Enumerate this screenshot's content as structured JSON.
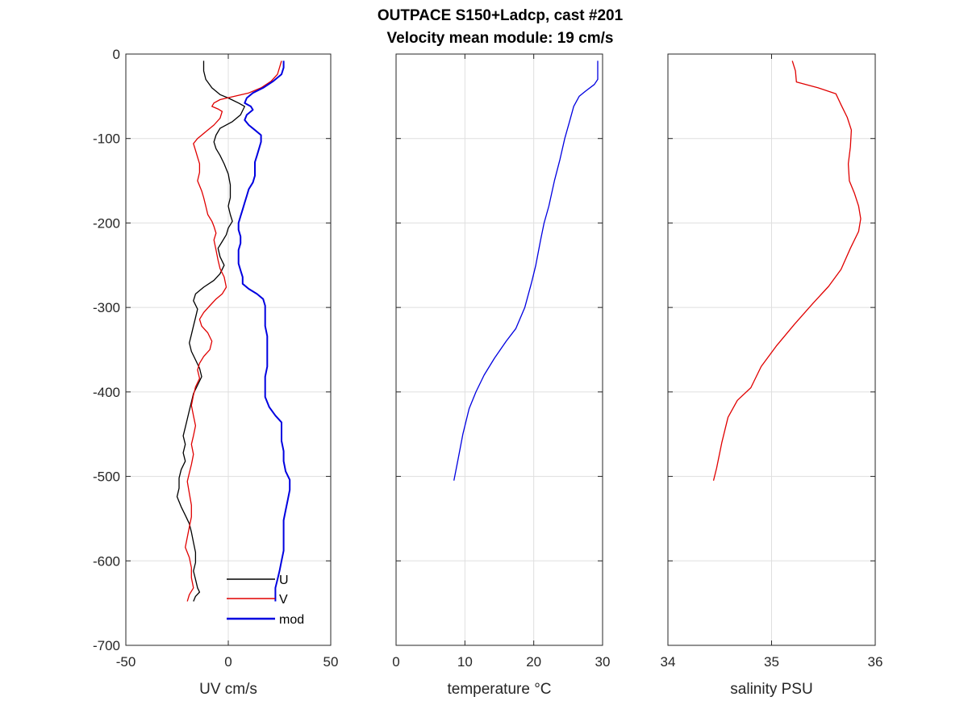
{
  "figure": {
    "title_line1": "OUTPACE S150+Ladcp, cast #201",
    "title_line2": "Velocity mean module:  19 cm/s"
  },
  "chart_data": [
    {
      "type": "line",
      "xlabel": "UV cm/s",
      "ylabel": "",
      "xlim": [
        -50,
        50
      ],
      "ylim": [
        -700,
        0
      ],
      "xticks": [
        -50,
        0,
        50
      ],
      "yticks": [
        0,
        -100,
        -200,
        -300,
        -400,
        -500,
        -600,
        -700
      ],
      "grid": true,
      "legend_position": "bottom-right",
      "series": [
        {
          "name": "U",
          "color": "#000000",
          "points": [
            [
              -12,
              -8
            ],
            [
              -12,
              -20
            ],
            [
              -11,
              -30
            ],
            [
              -8,
              -40
            ],
            [
              -4,
              -48
            ],
            [
              0,
              -52
            ],
            [
              5,
              -58
            ],
            [
              8,
              -62
            ],
            [
              6,
              -72
            ],
            [
              2,
              -80
            ],
            [
              -4,
              -88
            ],
            [
              -6,
              -96
            ],
            [
              -7,
              -104
            ],
            [
              -6,
              -112
            ],
            [
              -4,
              -120
            ],
            [
              -2,
              -130
            ],
            [
              0,
              -142
            ],
            [
              1,
              -155
            ],
            [
              1,
              -170
            ],
            [
              0,
              -180
            ],
            [
              1,
              -190
            ],
            [
              2,
              -198
            ],
            [
              0,
              -206
            ],
            [
              -1,
              -214
            ],
            [
              -3,
              -222
            ],
            [
              -5,
              -230
            ],
            [
              -4,
              -240
            ],
            [
              -2,
              -250
            ],
            [
              -4,
              -260
            ],
            [
              -7,
              -268
            ],
            [
              -12,
              -276
            ],
            [
              -16,
              -284
            ],
            [
              -17,
              -292
            ],
            [
              -15,
              -302
            ],
            [
              -16,
              -312
            ],
            [
              -17,
              -322
            ],
            [
              -18,
              -332
            ],
            [
              -19,
              -342
            ],
            [
              -18,
              -352
            ],
            [
              -16,
              -362
            ],
            [
              -14,
              -372
            ],
            [
              -13,
              -382
            ],
            [
              -15,
              -392
            ],
            [
              -17,
              -402
            ],
            [
              -18,
              -412
            ],
            [
              -19,
              -422
            ],
            [
              -20,
              -432
            ],
            [
              -21,
              -442
            ],
            [
              -22,
              -452
            ],
            [
              -21,
              -462
            ],
            [
              -22,
              -472
            ],
            [
              -21,
              -482
            ],
            [
              -23,
              -492
            ],
            [
              -24,
              -502
            ],
            [
              -24,
              -514
            ],
            [
              -25,
              -524
            ],
            [
              -23,
              -536
            ],
            [
              -21,
              -546
            ],
            [
              -19,
              -556
            ],
            [
              -18,
              -566
            ],
            [
              -17,
              -578
            ],
            [
              -16,
              -590
            ],
            [
              -16,
              -602
            ],
            [
              -17,
              -612
            ],
            [
              -16,
              -622
            ],
            [
              -15,
              -632
            ],
            [
              -14,
              -637
            ],
            [
              -16,
              -642
            ],
            [
              -17,
              -648
            ]
          ]
        },
        {
          "name": "V",
          "color": "#e00000",
          "points": [
            [
              26,
              -8
            ],
            [
              25,
              -16
            ],
            [
              24,
              -24
            ],
            [
              21,
              -32
            ],
            [
              16,
              -40
            ],
            [
              10,
              -46
            ],
            [
              3,
              -50
            ],
            [
              -4,
              -54
            ],
            [
              -7,
              -58
            ],
            [
              -8,
              -62
            ],
            [
              -5,
              -65
            ],
            [
              -3,
              -68
            ],
            [
              -4,
              -76
            ],
            [
              -7,
              -84
            ],
            [
              -11,
              -92
            ],
            [
              -15,
              -100
            ],
            [
              -17,
              -106
            ],
            [
              -16,
              -114
            ],
            [
              -15,
              -122
            ],
            [
              -14,
              -130
            ],
            [
              -14,
              -140
            ],
            [
              -15,
              -150
            ],
            [
              -13,
              -162
            ],
            [
              -12,
              -170
            ],
            [
              -11,
              -180
            ],
            [
              -10,
              -190
            ],
            [
              -8,
              -198
            ],
            [
              -7,
              -204
            ],
            [
              -6,
              -212
            ],
            [
              -7,
              -220
            ],
            [
              -6,
              -232
            ],
            [
              -5,
              -244
            ],
            [
              -4,
              -254
            ],
            [
              -2,
              -264
            ],
            [
              -1,
              -276
            ],
            [
              -3,
              -284
            ],
            [
              -6,
              -290
            ],
            [
              -9,
              -298
            ],
            [
              -12,
              -306
            ],
            [
              -14,
              -314
            ],
            [
              -13,
              -322
            ],
            [
              -10,
              -330
            ],
            [
              -8,
              -340
            ],
            [
              -9,
              -350
            ],
            [
              -12,
              -358
            ],
            [
              -14,
              -366
            ],
            [
              -15,
              -374
            ],
            [
              -14,
              -384
            ],
            [
              -16,
              -394
            ],
            [
              -17,
              -404
            ],
            [
              -18,
              -416
            ],
            [
              -17,
              -428
            ],
            [
              -16,
              -440
            ],
            [
              -17,
              -452
            ],
            [
              -18,
              -462
            ],
            [
              -17,
              -474
            ],
            [
              -18,
              -486
            ],
            [
              -19,
              -496
            ],
            [
              -20,
              -506
            ],
            [
              -19,
              -520
            ],
            [
              -18,
              -534
            ],
            [
              -18,
              -548
            ],
            [
              -19,
              -560
            ],
            [
              -20,
              -572
            ],
            [
              -21,
              -584
            ],
            [
              -19,
              -596
            ],
            [
              -18,
              -608
            ],
            [
              -18,
              -620
            ],
            [
              -17,
              -632
            ],
            [
              -19,
              -640
            ],
            [
              -20,
              -648
            ]
          ]
        },
        {
          "name": "mod",
          "color": "#0000e0",
          "points": [
            [
              27,
              -8
            ],
            [
              27,
              -16
            ],
            [
              26,
              -24
            ],
            [
              22,
              -32
            ],
            [
              17,
              -40
            ],
            [
              12,
              -46
            ],
            [
              9,
              -52
            ],
            [
              8,
              -58
            ],
            [
              11,
              -62
            ],
            [
              12,
              -66
            ],
            [
              9,
              -72
            ],
            [
              8,
              -78
            ],
            [
              10,
              -84
            ],
            [
              13,
              -90
            ],
            [
              16,
              -96
            ],
            [
              16,
              -104
            ],
            [
              15,
              -112
            ],
            [
              14,
              -120
            ],
            [
              13,
              -128
            ],
            [
              13,
              -136
            ],
            [
              13,
              -144
            ],
            [
              12,
              -152
            ],
            [
              10,
              -160
            ],
            [
              9,
              -168
            ],
            [
              8,
              -176
            ],
            [
              7,
              -184
            ],
            [
              6,
              -192
            ],
            [
              5,
              -200
            ],
            [
              5,
              -208
            ],
            [
              6,
              -216
            ],
            [
              6,
              -224
            ],
            [
              5,
              -232
            ],
            [
              5,
              -240
            ],
            [
              5,
              -248
            ],
            [
              6,
              -256
            ],
            [
              7,
              -264
            ],
            [
              7,
              -272
            ],
            [
              10,
              -278
            ],
            [
              14,
              -284
            ],
            [
              17,
              -290
            ],
            [
              18,
              -298
            ],
            [
              18,
              -310
            ],
            [
              18,
              -322
            ],
            [
              19,
              -334
            ],
            [
              19,
              -346
            ],
            [
              19,
              -358
            ],
            [
              19,
              -370
            ],
            [
              18,
              -382
            ],
            [
              18,
              -394
            ],
            [
              18,
              -406
            ],
            [
              20,
              -418
            ],
            [
              23,
              -428
            ],
            [
              26,
              -436
            ],
            [
              26,
              -446
            ],
            [
              26,
              -458
            ],
            [
              27,
              -470
            ],
            [
              27,
              -482
            ],
            [
              28,
              -494
            ],
            [
              30,
              -504
            ],
            [
              30,
              -516
            ],
            [
              29,
              -528
            ],
            [
              28,
              -540
            ],
            [
              27,
              -552
            ],
            [
              27,
              -564
            ],
            [
              27,
              -576
            ],
            [
              27,
              -588
            ],
            [
              26,
              -600
            ],
            [
              25,
              -612
            ],
            [
              24,
              -622
            ],
            [
              23,
              -632
            ],
            [
              23,
              -642
            ],
            [
              23,
              -648
            ]
          ]
        }
      ]
    },
    {
      "type": "line",
      "xlabel": "temperature °C",
      "ylabel": "",
      "xlim": [
        0,
        30
      ],
      "ylim": [
        -700,
        0
      ],
      "xticks": [
        0,
        10,
        20,
        30
      ],
      "yticks": [
        0,
        -100,
        -200,
        -300,
        -400,
        -500,
        -600,
        -700
      ],
      "grid": true,
      "series": [
        {
          "color": "#0000e0",
          "points": [
            [
              29.3,
              -8
            ],
            [
              29.3,
              -30
            ],
            [
              28.8,
              -36
            ],
            [
              27.5,
              -44
            ],
            [
              26.6,
              -50
            ],
            [
              25.8,
              -62
            ],
            [
              25.2,
              -80
            ],
            [
              24.5,
              -100
            ],
            [
              23.8,
              -125
            ],
            [
              23.0,
              -150
            ],
            [
              22.2,
              -180
            ],
            [
              21.5,
              -200
            ],
            [
              21.0,
              -220
            ],
            [
              20.3,
              -250
            ],
            [
              19.7,
              -270
            ],
            [
              18.7,
              -300
            ],
            [
              17.4,
              -325
            ],
            [
              16.0,
              -340
            ],
            [
              14.3,
              -360
            ],
            [
              12.8,
              -380
            ],
            [
              11.6,
              -400
            ],
            [
              10.6,
              -420
            ],
            [
              9.7,
              -450
            ],
            [
              9.0,
              -480
            ],
            [
              8.4,
              -505
            ]
          ]
        }
      ]
    },
    {
      "type": "line",
      "xlabel": "salinity PSU",
      "ylabel": "",
      "xlim": [
        34,
        36
      ],
      "ylim": [
        -700,
        0
      ],
      "xticks": [
        34,
        35,
        36
      ],
      "yticks": [
        0,
        -100,
        -200,
        -300,
        -400,
        -500,
        -600,
        -700
      ],
      "grid": true,
      "series": [
        {
          "color": "#e00000",
          "points": [
            [
              35.2,
              -8
            ],
            [
              35.23,
              -20
            ],
            [
              35.24,
              -33
            ],
            [
              35.45,
              -40
            ],
            [
              35.62,
              -47
            ],
            [
              35.67,
              -60
            ],
            [
              35.73,
              -75
            ],
            [
              35.77,
              -90
            ],
            [
              35.76,
              -110
            ],
            [
              35.74,
              -130
            ],
            [
              35.75,
              -150
            ],
            [
              35.8,
              -165
            ],
            [
              35.84,
              -180
            ],
            [
              35.86,
              -195
            ],
            [
              35.84,
              -210
            ],
            [
              35.76,
              -230
            ],
            [
              35.67,
              -255
            ],
            [
              35.55,
              -275
            ],
            [
              35.4,
              -295
            ],
            [
              35.22,
              -320
            ],
            [
              35.05,
              -345
            ],
            [
              34.9,
              -370
            ],
            [
              34.8,
              -395
            ],
            [
              34.67,
              -410
            ],
            [
              34.58,
              -430
            ],
            [
              34.52,
              -460
            ],
            [
              34.47,
              -490
            ],
            [
              34.44,
              -505
            ]
          ]
        }
      ]
    }
  ]
}
